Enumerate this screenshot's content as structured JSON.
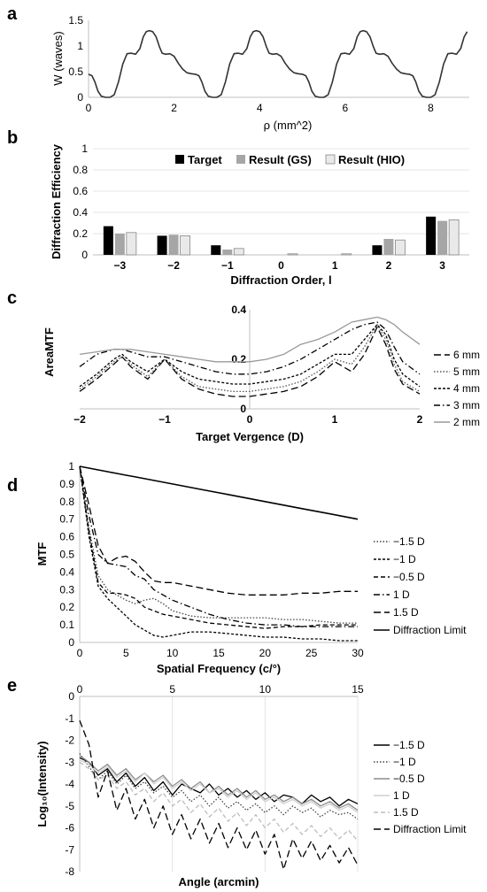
{
  "chart_data": [
    {
      "panel": "a",
      "type": "line",
      "xlabel": "ρ (mm^2)",
      "ylabel": "W (waves)",
      "xlim": [
        0,
        8.9
      ],
      "ylim": [
        0,
        1.5
      ],
      "xticks": [
        0,
        2,
        4,
        6,
        8
      ],
      "xtick_labels": [
        "0",
        "2",
        "4",
        "6",
        "8"
      ],
      "yticks": [
        0,
        0.5,
        1,
        1.5
      ],
      "ytick_labels": [
        "0",
        "0.5",
        "1",
        "1.5"
      ],
      "period": 2.5,
      "one_period_profile": {
        "x": [
          0,
          0.08,
          0.15,
          0.22,
          0.3,
          0.4,
          0.5,
          0.6,
          0.7,
          0.8,
          0.9,
          1.0,
          1.1,
          1.2,
          1.28,
          1.35,
          1.42,
          1.5,
          1.58,
          1.66,
          1.72,
          1.8,
          1.9,
          2.0,
          2.1,
          2.2,
          2.3,
          2.4,
          2.5
        ],
        "y": [
          0.45,
          0.42,
          0.3,
          0.12,
          0.02,
          0.0,
          0.0,
          0.05,
          0.3,
          0.65,
          0.85,
          0.86,
          0.84,
          0.95,
          1.18,
          1.28,
          1.3,
          1.28,
          1.18,
          0.98,
          0.86,
          0.84,
          0.85,
          0.8,
          0.66,
          0.55,
          0.48,
          0.46,
          0.45
        ]
      },
      "series": [
        {
          "name": "",
          "style": "solid",
          "color": "#333333"
        }
      ]
    },
    {
      "panel": "b",
      "type": "bar",
      "xlabel": "Diffraction Order, l",
      "ylabel": "Diffraction Efficiency",
      "ylim": [
        0,
        1
      ],
      "yticks": [
        0,
        0.2,
        0.4,
        0.6,
        0.8,
        1
      ],
      "ytick_labels": [
        "0",
        "0.2",
        "0.4",
        "0.6",
        "0.8",
        "1"
      ],
      "categories": [
        "−3",
        "−2",
        "−1",
        "0",
        "1",
        "2",
        "3"
      ],
      "legend_position": "upper-right",
      "series": [
        {
          "name": "Target",
          "color": "#000000",
          "values": [
            0.27,
            0.18,
            0.09,
            0.0,
            0.0,
            0.09,
            0.36
          ]
        },
        {
          "name": "Result (GS)",
          "color": "#a6a6a6",
          "values": [
            0.2,
            0.19,
            0.05,
            0.0,
            0.0,
            0.15,
            0.32
          ]
        },
        {
          "name": "Result (HIO)",
          "color": "#e9e9e9",
          "values": [
            0.21,
            0.18,
            0.06,
            0.01,
            0.01,
            0.14,
            0.33
          ]
        }
      ]
    },
    {
      "panel": "c",
      "type": "line",
      "xlabel": "Target Vergence (D)",
      "ylabel": "AreaMTF",
      "xlim": [
        -2,
        2
      ],
      "ylim": [
        0,
        0.4
      ],
      "xticks": [
        -2,
        -1,
        0,
        1,
        2
      ],
      "xtick_labels": [
        "−2",
        "−1",
        "0",
        "1",
        "2"
      ],
      "yticks": [
        0,
        0.2,
        0.4
      ],
      "ytick_labels": [
        "0",
        "0.2",
        "0.4"
      ],
      "x": [
        -2,
        -1.8,
        -1.6,
        -1.5,
        -1.4,
        -1.2,
        -1.0,
        -0.8,
        -0.6,
        -0.4,
        -0.2,
        0,
        0.2,
        0.4,
        0.6,
        0.8,
        1.0,
        1.1,
        1.2,
        1.35,
        1.5,
        1.6,
        1.7,
        1.8,
        2.0
      ],
      "series": [
        {
          "name": "6 mm",
          "style": "longdash",
          "color": "#000000",
          "y": [
            0.07,
            0.12,
            0.18,
            0.21,
            0.17,
            0.12,
            0.2,
            0.12,
            0.08,
            0.06,
            0.05,
            0.05,
            0.06,
            0.07,
            0.09,
            0.13,
            0.19,
            0.17,
            0.15,
            0.22,
            0.33,
            0.26,
            0.16,
            0.1,
            0.06
          ]
        },
        {
          "name": "5 mm",
          "style": "dotted",
          "color": "#555555",
          "y": [
            0.08,
            0.13,
            0.19,
            0.21,
            0.18,
            0.13,
            0.2,
            0.13,
            0.09,
            0.08,
            0.07,
            0.07,
            0.08,
            0.09,
            0.11,
            0.15,
            0.2,
            0.19,
            0.18,
            0.25,
            0.34,
            0.28,
            0.18,
            0.11,
            0.07
          ]
        },
        {
          "name": "4 mm",
          "style": "shortdash",
          "color": "#000000",
          "y": [
            0.09,
            0.14,
            0.2,
            0.22,
            0.19,
            0.15,
            0.2,
            0.15,
            0.12,
            0.11,
            0.1,
            0.1,
            0.11,
            0.12,
            0.14,
            0.18,
            0.22,
            0.22,
            0.22,
            0.28,
            0.34,
            0.3,
            0.2,
            0.14,
            0.09
          ]
        },
        {
          "name": "3 mm",
          "style": "dashdot",
          "color": "#000000",
          "y": [
            0.17,
            0.22,
            0.24,
            0.24,
            0.23,
            0.21,
            0.21,
            0.19,
            0.17,
            0.15,
            0.14,
            0.14,
            0.15,
            0.17,
            0.2,
            0.24,
            0.28,
            0.3,
            0.32,
            0.34,
            0.35,
            0.32,
            0.25,
            0.19,
            0.14
          ]
        },
        {
          "name": "2 mm",
          "style": "solid",
          "color": "#999999",
          "y": [
            0.22,
            0.23,
            0.24,
            0.24,
            0.24,
            0.23,
            0.22,
            0.21,
            0.2,
            0.19,
            0.19,
            0.19,
            0.2,
            0.22,
            0.26,
            0.28,
            0.31,
            0.33,
            0.35,
            0.36,
            0.37,
            0.36,
            0.34,
            0.31,
            0.26
          ]
        }
      ]
    },
    {
      "panel": "d",
      "type": "line",
      "xlabel": "Spatial Frequency (c/°)",
      "ylabel": "MTF",
      "xlim": [
        0,
        30
      ],
      "ylim": [
        0,
        1
      ],
      "xticks": [
        0,
        5,
        10,
        15,
        20,
        25,
        30
      ],
      "xtick_labels": [
        "0",
        "5",
        "10",
        "15",
        "20",
        "25",
        "30"
      ],
      "yticks": [
        0,
        0.1,
        0.2,
        0.3,
        0.4,
        0.5,
        0.6,
        0.7,
        0.8,
        0.9,
        1
      ],
      "ytick_labels": [
        "0",
        "0.1",
        "0.2",
        "0.3",
        "0.4",
        "0.5",
        "0.6",
        "0.7",
        "0.8",
        "0.9",
        "1"
      ],
      "x": [
        0,
        1,
        2,
        3,
        4,
        5,
        6,
        7,
        8,
        9,
        10,
        12,
        14,
        16,
        18,
        20,
        22,
        24,
        26,
        28,
        30
      ],
      "series": [
        {
          "name": "−1.5 D",
          "style": "dotted",
          "color": "#444444",
          "y": [
            1.0,
            0.65,
            0.38,
            0.3,
            0.27,
            0.24,
            0.22,
            0.24,
            0.25,
            0.22,
            0.18,
            0.15,
            0.14,
            0.14,
            0.14,
            0.14,
            0.13,
            0.13,
            0.12,
            0.11,
            0.11
          ]
        },
        {
          "name": "−1 D",
          "style": "shortdash",
          "color": "#000000",
          "y": [
            1.0,
            0.6,
            0.32,
            0.25,
            0.2,
            0.15,
            0.1,
            0.07,
            0.04,
            0.03,
            0.04,
            0.06,
            0.06,
            0.05,
            0.04,
            0.03,
            0.03,
            0.02,
            0.02,
            0.01,
            0.01
          ]
        },
        {
          "name": "−0.5 D",
          "style": "dashed",
          "color": "#000000",
          "y": [
            1.0,
            0.63,
            0.34,
            0.28,
            0.28,
            0.27,
            0.25,
            0.2,
            0.18,
            0.16,
            0.15,
            0.13,
            0.11,
            0.1,
            0.09,
            0.08,
            0.09,
            0.09,
            0.1,
            0.1,
            0.1
          ]
        },
        {
          "name": "1 D",
          "style": "dashdot",
          "color": "#000000",
          "y": [
            1.0,
            0.72,
            0.5,
            0.45,
            0.44,
            0.43,
            0.38,
            0.36,
            0.3,
            0.27,
            0.24,
            0.2,
            0.16,
            0.13,
            0.11,
            0.1,
            0.1,
            0.09,
            0.09,
            0.09,
            0.09
          ]
        },
        {
          "name": "1.5 D",
          "style": "longdash",
          "color": "#000000",
          "y": [
            1.0,
            0.78,
            0.55,
            0.45,
            0.48,
            0.49,
            0.46,
            0.4,
            0.35,
            0.34,
            0.34,
            0.32,
            0.3,
            0.28,
            0.27,
            0.27,
            0.27,
            0.28,
            0.28,
            0.29,
            0.29
          ]
        },
        {
          "name": "Diffraction Limit",
          "style": "solid",
          "color": "#000000",
          "y": [
            1.0,
            0.99,
            0.98,
            0.97,
            0.96,
            0.95,
            0.94,
            0.93,
            0.92,
            0.91,
            0.9,
            0.88,
            0.86,
            0.84,
            0.82,
            0.8,
            0.78,
            0.76,
            0.74,
            0.72,
            0.7
          ]
        }
      ]
    },
    {
      "panel": "e",
      "type": "line",
      "xlabel": "Angle (arcmin)",
      "ylabel": "Log₁₀(Intensity)",
      "xlim": [
        0,
        15
      ],
      "ylim": [
        -8,
        0
      ],
      "xticks": [
        0,
        5,
        10,
        15
      ],
      "xtick_labels": [
        "0",
        "5",
        "10",
        "15"
      ],
      "yticks": [
        0,
        -1,
        -2,
        -3,
        -4,
        -5,
        -6,
        -7,
        -8
      ],
      "ytick_labels": [
        "0",
        "-1",
        "-2",
        "-3",
        "-4",
        "-5",
        "-6",
        "-7",
        "-8"
      ],
      "x": [
        0,
        0.5,
        1,
        1.5,
        2,
        2.5,
        3,
        3.5,
        4,
        4.5,
        5,
        5.5,
        6,
        6.5,
        7,
        7.5,
        8,
        8.5,
        9,
        9.5,
        10,
        10.5,
        11,
        11.5,
        12,
        12.5,
        13,
        13.5,
        14,
        14.5,
        15
      ],
      "series": [
        {
          "name": "−1.5 D",
          "style": "solid",
          "color": "#000000",
          "y": [
            -2.8,
            -3.0,
            -3.6,
            -3.3,
            -3.9,
            -3.5,
            -4.1,
            -3.7,
            -4.3,
            -3.9,
            -4.5,
            -4.0,
            -4.2,
            -4.4,
            -4.0,
            -4.5,
            -4.2,
            -4.6,
            -4.3,
            -4.7,
            -4.4,
            -4.8,
            -4.5,
            -4.6,
            -4.9,
            -4.5,
            -4.8,
            -4.6,
            -5.0,
            -4.7,
            -4.9
          ]
        },
        {
          "name": "−1 D",
          "style": "dotted",
          "color": "#444444",
          "y": [
            -2.6,
            -3.2,
            -3.8,
            -3.4,
            -4.0,
            -3.6,
            -4.2,
            -3.9,
            -4.4,
            -4.1,
            -4.6,
            -4.3,
            -4.8,
            -4.5,
            -5.0,
            -4.6,
            -5.1,
            -4.8,
            -5.2,
            -4.9,
            -5.3,
            -5.0,
            -5.4,
            -5.0,
            -5.3,
            -5.1,
            -5.5,
            -5.2,
            -5.4,
            -5.3,
            -5.6
          ]
        },
        {
          "name": "−0.5 D",
          "style": "solid",
          "color": "#8c8c8c",
          "y": [
            -2.7,
            -3.0,
            -3.4,
            -3.1,
            -3.6,
            -3.3,
            -3.8,
            -3.5,
            -3.9,
            -3.6,
            -4.1,
            -3.8,
            -4.2,
            -3.9,
            -4.4,
            -4.1,
            -4.5,
            -4.2,
            -4.6,
            -4.3,
            -4.7,
            -4.5,
            -4.8,
            -4.6,
            -4.9,
            -4.7,
            -5.0,
            -4.8,
            -5.1,
            -4.9,
            -5.2
          ]
        },
        {
          "name": "1 D",
          "style": "solid",
          "color": "#d0d0d0",
          "y": [
            -2.9,
            -3.1,
            -3.5,
            -3.2,
            -3.7,
            -3.4,
            -3.9,
            -3.5,
            -4.0,
            -3.7,
            -4.2,
            -3.9,
            -4.3,
            -4.0,
            -4.4,
            -4.2,
            -4.6,
            -4.3,
            -4.7,
            -4.4,
            -4.8,
            -4.6,
            -4.9,
            -4.7,
            -5.0,
            -4.8,
            -5.1,
            -4.9,
            -5.2,
            -5.0,
            -5.3
          ]
        },
        {
          "name": "1.5 D",
          "style": "dashed",
          "color": "#bdbdbd",
          "y": [
            -3.0,
            -3.3,
            -3.8,
            -3.6,
            -4.2,
            -3.9,
            -4.5,
            -4.2,
            -4.8,
            -4.4,
            -5.0,
            -4.7,
            -5.3,
            -4.9,
            -5.5,
            -5.1,
            -5.7,
            -5.3,
            -5.9,
            -5.4,
            -6.0,
            -5.6,
            -6.2,
            -5.8,
            -6.3,
            -5.9,
            -6.4,
            -6.0,
            -6.5,
            -6.1,
            -6.6
          ]
        },
        {
          "name": "Diffraction Limit",
          "style": "longdash",
          "color": "#000000",
          "y": [
            -1.1,
            -2.2,
            -4.6,
            -3.4,
            -5.2,
            -4.2,
            -5.6,
            -4.7,
            -6.0,
            -5.0,
            -6.3,
            -5.4,
            -6.5,
            -5.6,
            -6.7,
            -5.8,
            -6.9,
            -6.0,
            -7.0,
            -6.1,
            -7.2,
            -6.3,
            -7.9,
            -6.5,
            -7.4,
            -6.6,
            -7.5,
            -6.8,
            -7.6,
            -6.9,
            -7.7
          ]
        }
      ]
    }
  ]
}
